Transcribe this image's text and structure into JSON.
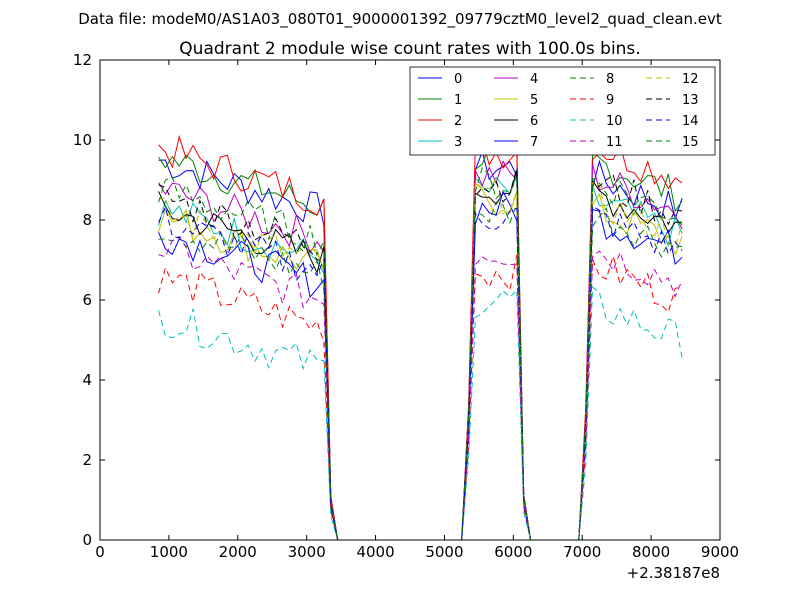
{
  "header": {
    "file_label": "Data file: modeM0/AS1A03_080T01_9000001392_09779cztM0_level2_quad_clean.evt"
  },
  "chart_data": {
    "type": "line",
    "title": "Quadrant 2 module wise count rates with 100.0s bins.",
    "xlabel": "",
    "ylabel": "",
    "xlim": [
      0,
      9000
    ],
    "ylim": [
      0,
      12
    ],
    "x_ticks": [
      0,
      1000,
      2000,
      3000,
      4000,
      5000,
      6000,
      7000,
      8000,
      9000
    ],
    "y_ticks": [
      0,
      2,
      4,
      6,
      8,
      10,
      12
    ],
    "x_offset_label": "+2.38187e8",
    "grid": false,
    "legend_position": "upper-right",
    "legend_columns": 4,
    "segments": [
      {
        "x_start": 850,
        "x_end": 3250,
        "zero_start": 3450
      },
      {
        "x_start": 5450,
        "x_end": 6050,
        "zero_start": 6250
      },
      {
        "x_start": 7150,
        "x_end": 8450,
        "zero_start": null
      }
    ],
    "series": [
      {
        "name": "0",
        "color": "#0000ff",
        "dash": "solid",
        "levels": [
          8.9,
          9.2,
          8.6
        ]
      },
      {
        "name": "1",
        "color": "#008000",
        "dash": "solid",
        "levels": [
          9.0,
          9.5,
          9.0
        ]
      },
      {
        "name": "2",
        "color": "#ff0000",
        "dash": "solid",
        "levels": [
          9.2,
          9.6,
          9.4
        ]
      },
      {
        "name": "3",
        "color": "#00bfbf",
        "dash": "solid",
        "levels": [
          7.7,
          8.6,
          8.0
        ]
      },
      {
        "name": "4",
        "color": "#bf00bf",
        "dash": "solid",
        "levels": [
          8.2,
          9.0,
          8.6
        ]
      },
      {
        "name": "5",
        "color": "#bfbf00",
        "dash": "solid",
        "levels": [
          7.5,
          8.4,
          7.8
        ]
      },
      {
        "name": "6",
        "color": "#000000",
        "dash": "solid",
        "levels": [
          7.7,
          8.7,
          8.2
        ]
      },
      {
        "name": "7",
        "color": "#0000ff",
        "dash": "solid",
        "levels": [
          7.1,
          8.2,
          7.6
        ]
      },
      {
        "name": "8",
        "color": "#008000",
        "dash": "dashed",
        "levels": [
          7.3,
          8.1,
          7.7
        ]
      },
      {
        "name": "9",
        "color": "#ff0000",
        "dash": "dashed",
        "levels": [
          6.0,
          6.6,
          6.4
        ]
      },
      {
        "name": "10",
        "color": "#00bfbf",
        "dash": "dashed",
        "levels": [
          5.0,
          5.9,
          5.4
        ]
      },
      {
        "name": "11",
        "color": "#bf00bf",
        "dash": "dashed",
        "levels": [
          6.7,
          7.1,
          6.8
        ]
      },
      {
        "name": "12",
        "color": "#bfbf00",
        "dash": "dashed",
        "levels": [
          7.6,
          8.5,
          8.0
        ]
      },
      {
        "name": "13",
        "color": "#000000",
        "dash": "dashed",
        "levels": [
          8.0,
          8.8,
          8.5
        ]
      },
      {
        "name": "14",
        "color": "#0000ff",
        "dash": "dashed",
        "levels": [
          7.4,
          8.0,
          7.6
        ]
      },
      {
        "name": "15",
        "color": "#008000",
        "dash": "dashed",
        "levels": [
          8.2,
          8.8,
          8.5
        ]
      }
    ]
  }
}
